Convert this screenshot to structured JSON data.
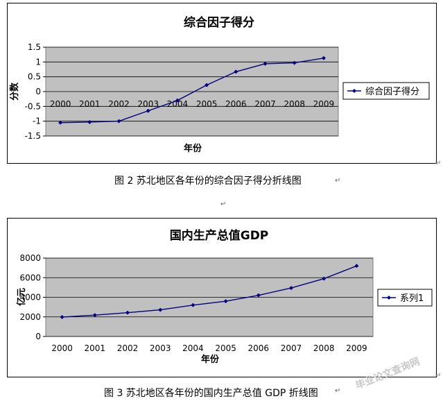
{
  "chart_data": [
    {
      "type": "line",
      "title": "综合因子得分",
      "xlabel": "年份",
      "ylabel": "分数",
      "x": [
        "2000",
        "2001",
        "2002",
        "2003",
        "2004",
        "2005",
        "2006",
        "2007",
        "2008",
        "2009"
      ],
      "series": [
        {
          "name": "综合因子得分",
          "values": [
            -1.05,
            -1.03,
            -1.0,
            -0.65,
            -0.3,
            0.22,
            0.67,
            0.94,
            0.97,
            1.13
          ]
        }
      ],
      "ylim": [
        -1.5,
        1.5
      ],
      "yticks": [
        "1.5",
        "1",
        "0.5",
        "0",
        "-0.5",
        "-1",
        "-1.5"
      ],
      "grid": true,
      "legend": "right",
      "colors": {
        "line": "#000080",
        "plot_bg": "#c0c0c0"
      }
    },
    {
      "type": "line",
      "title": "国内生产总值GDP",
      "xlabel": "年份",
      "ylabel": "亿元",
      "x": [
        "2000",
        "2001",
        "2002",
        "2003",
        "2004",
        "2005",
        "2006",
        "2007",
        "2008",
        "2009"
      ],
      "series": [
        {
          "name": "系列1",
          "values": [
            1980,
            2180,
            2430,
            2720,
            3200,
            3600,
            4200,
            4950,
            5900,
            7200
          ]
        }
      ],
      "ylim": [
        0,
        8000
      ],
      "yticks": [
        "8000",
        "6000",
        "4000",
        "2000",
        "0"
      ],
      "grid": true,
      "legend": "right",
      "colors": {
        "line": "#000080",
        "plot_bg": "#c0c0c0"
      }
    }
  ],
  "captions": {
    "figure2": "图 2  苏北地区各年份的综合因子得分折线图",
    "figure3": "图 3  苏北地区各年份的国内生产总值 GDP 折线图"
  },
  "paragraph_mark": "↵",
  "watermark": "毕业论文查询网"
}
